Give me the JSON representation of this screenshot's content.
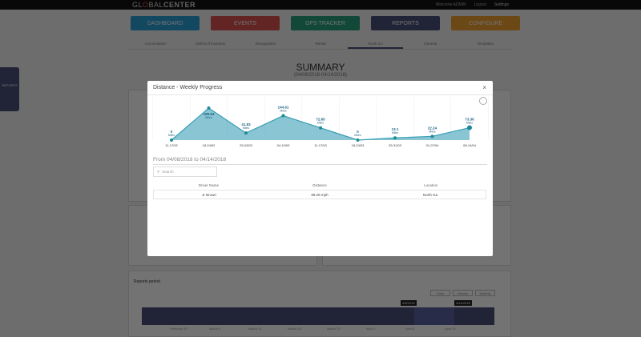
{
  "header": {
    "logo_left": "GL",
    "logo_o": "O",
    "logo_mid": "BAL",
    "logo_bold": "CENTER",
    "welcome": "Welcome ADMIN",
    "logout": "Logout",
    "settings": "Settings"
  },
  "nav": [
    {
      "label": "DASHBOARD",
      "color": "#2b9fd8"
    },
    {
      "label": "EVENTS",
      "color": "#d9534f"
    },
    {
      "label": "GPS TRACKER",
      "color": "#26a17a"
    },
    {
      "label": "REPORTS",
      "color": "#4a4f7a"
    },
    {
      "label": "CONFIGURE",
      "color": "#f0a030"
    }
  ],
  "tabs": [
    "Accumulation",
    "Deficit of inventory",
    "Deregulation",
    "Rental",
    "North GA",
    "General",
    "Templates"
  ],
  "active_tab": 4,
  "summary": {
    "title": "SUMMARY",
    "range": "(04/08/2018-04/14/2018)"
  },
  "sidebar": {
    "label": "REPORTS"
  },
  "modal": {
    "title": "Distance - Weekly Progress",
    "close": "×",
    "from": "From 04/08/2018 to 04/14/2018",
    "search_placeholder": "Search",
    "columns": [
      "Driver Name",
      "Distance",
      "Location"
    ],
    "rows": [
      [
        "Jr Brown",
        "98.28 mph",
        "North Ga"
      ]
    ]
  },
  "chart_data": {
    "type": "area",
    "categories": [
      "11-17/02",
      "18-24/02",
      "25-03/03",
      "04-10/03",
      "11-17/03",
      "18-24/03",
      "25-31/03",
      "01-07/04",
      "08-14/04"
    ],
    "values": [
      0,
      189.84,
      41.83,
      144.61,
      72.65,
      0,
      13.1,
      22.24,
      73.36
    ],
    "unit": "Miles",
    "color": "#3a9fb5"
  },
  "reports_period": {
    "title": "Reports period",
    "buttons": [
      "Daily",
      "Weekly",
      "Monthly"
    ],
    "active": "Weekly",
    "start_tag": "4/8/2018",
    "end_tag": "4/14/2018",
    "months": [
      "February 25",
      "March 4",
      "March 11",
      "March 18",
      "March 25",
      "April 1",
      "April 8",
      "April 15"
    ]
  }
}
